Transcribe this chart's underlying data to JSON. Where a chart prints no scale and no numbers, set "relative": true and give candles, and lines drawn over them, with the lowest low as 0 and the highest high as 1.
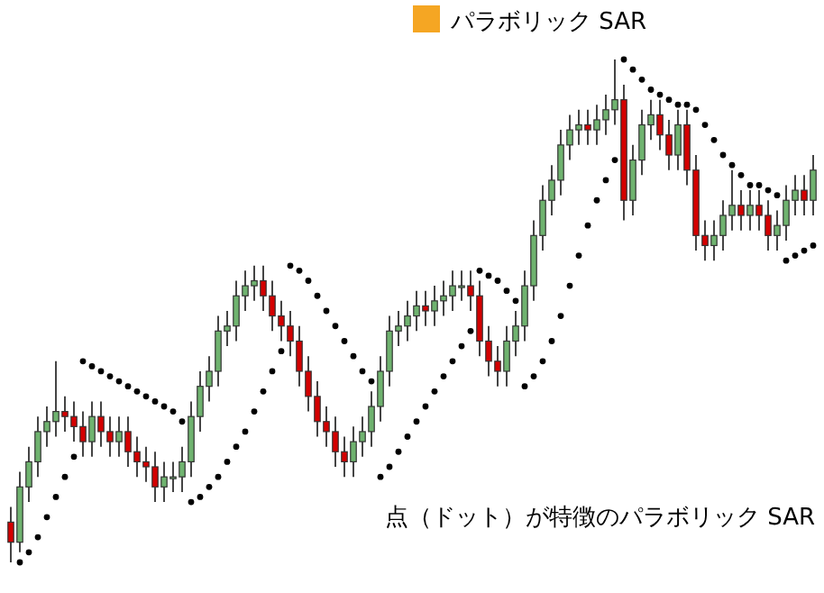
{
  "chart_data": {
    "type": "candlestick",
    "relative": true,
    "title": "パラボリック SAR",
    "annotations": [
      "点（ドット）が特徴のパラボリック SAR"
    ],
    "categories": [
      null,
      null,
      null,
      null,
      null,
      null,
      null,
      null,
      null,
      null,
      null,
      null,
      null,
      null,
      null,
      null,
      null,
      null,
      null,
      null,
      null,
      null,
      null,
      null,
      null,
      null,
      null,
      null,
      null,
      null,
      null,
      null,
      null,
      null,
      null,
      null,
      null,
      null,
      null,
      null,
      null,
      null,
      null,
      null,
      null,
      null,
      null,
      null,
      null,
      null,
      null,
      null,
      null,
      null,
      null,
      null,
      null,
      null,
      null,
      null,
      null,
      null,
      null,
      null,
      null,
      null,
      null,
      null,
      null,
      null,
      null,
      null,
      null,
      null,
      null,
      null,
      null,
      null,
      null,
      null,
      null,
      null,
      null,
      null,
      null,
      null,
      null,
      null,
      null,
      null
    ],
    "ohlc": [
      [
        0.08,
        0.11,
        0.0,
        0.04
      ],
      [
        0.04,
        0.18,
        0.02,
        0.15
      ],
      [
        0.15,
        0.23,
        0.12,
        0.2
      ],
      [
        0.2,
        0.29,
        0.17,
        0.26
      ],
      [
        0.26,
        0.31,
        0.23,
        0.28
      ],
      [
        0.28,
        0.4,
        0.25,
        0.3
      ],
      [
        0.3,
        0.33,
        0.26,
        0.29
      ],
      [
        0.29,
        0.32,
        0.24,
        0.27
      ],
      [
        0.27,
        0.3,
        0.21,
        0.24
      ],
      [
        0.24,
        0.32,
        0.21,
        0.29
      ],
      [
        0.29,
        0.32,
        0.23,
        0.26
      ],
      [
        0.26,
        0.29,
        0.21,
        0.24
      ],
      [
        0.24,
        0.29,
        0.21,
        0.26
      ],
      [
        0.26,
        0.29,
        0.19,
        0.22
      ],
      [
        0.22,
        0.25,
        0.17,
        0.2
      ],
      [
        0.2,
        0.23,
        0.16,
        0.19
      ],
      [
        0.19,
        0.22,
        0.12,
        0.15
      ],
      [
        0.15,
        0.2,
        0.12,
        0.17
      ],
      [
        0.17,
        0.2,
        0.14,
        0.17
      ],
      [
        0.17,
        0.23,
        0.14,
        0.2
      ],
      [
        0.2,
        0.32,
        0.17,
        0.29
      ],
      [
        0.29,
        0.38,
        0.26,
        0.35
      ],
      [
        0.35,
        0.41,
        0.32,
        0.38
      ],
      [
        0.38,
        0.49,
        0.35,
        0.46
      ],
      [
        0.46,
        0.5,
        0.43,
        0.47
      ],
      [
        0.47,
        0.56,
        0.44,
        0.53
      ],
      [
        0.53,
        0.58,
        0.5,
        0.55
      ],
      [
        0.55,
        0.59,
        0.52,
        0.56
      ],
      [
        0.56,
        0.59,
        0.5,
        0.53
      ],
      [
        0.53,
        0.56,
        0.46,
        0.49
      ],
      [
        0.49,
        0.52,
        0.44,
        0.47
      ],
      [
        0.47,
        0.5,
        0.41,
        0.44
      ],
      [
        0.44,
        0.47,
        0.35,
        0.38
      ],
      [
        0.38,
        0.41,
        0.3,
        0.33
      ],
      [
        0.33,
        0.36,
        0.25,
        0.28
      ],
      [
        0.28,
        0.31,
        0.23,
        0.26
      ],
      [
        0.26,
        0.29,
        0.19,
        0.22
      ],
      [
        0.22,
        0.25,
        0.17,
        0.2
      ],
      [
        0.2,
        0.27,
        0.17,
        0.24
      ],
      [
        0.24,
        0.29,
        0.21,
        0.26
      ],
      [
        0.26,
        0.34,
        0.23,
        0.31
      ],
      [
        0.31,
        0.41,
        0.28,
        0.38
      ],
      [
        0.38,
        0.49,
        0.35,
        0.46
      ],
      [
        0.46,
        0.5,
        0.43,
        0.47
      ],
      [
        0.47,
        0.52,
        0.44,
        0.49
      ],
      [
        0.49,
        0.54,
        0.46,
        0.51
      ],
      [
        0.51,
        0.54,
        0.47,
        0.5
      ],
      [
        0.5,
        0.55,
        0.47,
        0.52
      ],
      [
        0.52,
        0.56,
        0.49,
        0.53
      ],
      [
        0.53,
        0.58,
        0.5,
        0.55
      ],
      [
        0.55,
        0.58,
        0.52,
        0.55
      ],
      [
        0.55,
        0.58,
        0.5,
        0.53
      ],
      [
        0.53,
        0.56,
        0.41,
        0.44
      ],
      [
        0.44,
        0.47,
        0.37,
        0.4
      ],
      [
        0.4,
        0.43,
        0.35,
        0.38
      ],
      [
        0.38,
        0.47,
        0.35,
        0.44
      ],
      [
        0.44,
        0.5,
        0.41,
        0.47
      ],
      [
        0.47,
        0.58,
        0.44,
        0.55
      ],
      [
        0.55,
        0.68,
        0.52,
        0.65
      ],
      [
        0.65,
        0.75,
        0.62,
        0.72
      ],
      [
        0.72,
        0.79,
        0.69,
        0.76
      ],
      [
        0.76,
        0.86,
        0.73,
        0.83
      ],
      [
        0.83,
        0.89,
        0.8,
        0.86
      ],
      [
        0.86,
        0.9,
        0.83,
        0.87
      ],
      [
        0.87,
        0.9,
        0.83,
        0.86
      ],
      [
        0.86,
        0.91,
        0.83,
        0.88
      ],
      [
        0.88,
        0.93,
        0.85,
        0.9
      ],
      [
        0.9,
        1.0,
        0.87,
        0.92
      ],
      [
        0.92,
        0.95,
        0.68,
        0.72
      ],
      [
        0.72,
        0.83,
        0.69,
        0.8
      ],
      [
        0.8,
        0.9,
        0.77,
        0.87
      ],
      [
        0.87,
        0.92,
        0.84,
        0.89
      ],
      [
        0.89,
        0.92,
        0.82,
        0.85
      ],
      [
        0.85,
        0.88,
        0.78,
        0.81
      ],
      [
        0.81,
        0.9,
        0.78,
        0.87
      ],
      [
        0.87,
        0.9,
        0.75,
        0.78
      ],
      [
        0.78,
        0.81,
        0.62,
        0.65
      ],
      [
        0.65,
        0.68,
        0.6,
        0.63
      ],
      [
        0.63,
        0.68,
        0.6,
        0.65
      ],
      [
        0.65,
        0.72,
        0.62,
        0.69
      ],
      [
        0.69,
        0.78,
        0.66,
        0.71
      ],
      [
        0.71,
        0.74,
        0.66,
        0.69
      ],
      [
        0.69,
        0.74,
        0.66,
        0.71
      ],
      [
        0.71,
        0.74,
        0.66,
        0.69
      ],
      [
        0.69,
        0.72,
        0.62,
        0.65
      ],
      [
        0.65,
        0.7,
        0.62,
        0.67
      ],
      [
        0.67,
        0.75,
        0.64,
        0.72
      ],
      [
        0.72,
        0.77,
        0.69,
        0.74
      ],
      [
        0.74,
        0.77,
        0.69,
        0.72
      ],
      [
        0.72,
        0.81,
        0.69,
        0.78
      ]
    ],
    "series": [
      {
        "type": "scatter",
        "marker": "circle",
        "color": "#000000",
        "values": [
          null,
          0.0,
          0.02,
          0.05,
          0.09,
          0.13,
          0.17,
          0.21,
          0.4,
          0.39,
          0.38,
          0.37,
          0.36,
          0.35,
          0.34,
          0.33,
          0.32,
          0.31,
          0.3,
          0.28,
          0.12,
          0.13,
          0.15,
          0.17,
          0.2,
          0.23,
          0.26,
          0.3,
          0.34,
          0.38,
          0.42,
          0.59,
          0.58,
          0.56,
          0.53,
          0.5,
          0.47,
          0.44,
          0.41,
          0.38,
          0.36,
          0.17,
          0.19,
          0.22,
          0.25,
          0.28,
          0.31,
          0.34,
          0.37,
          0.4,
          0.43,
          0.46,
          0.58,
          0.57,
          0.56,
          0.54,
          0.52,
          0.35,
          0.37,
          0.4,
          0.44,
          0.49,
          0.55,
          0.61,
          0.67,
          0.72,
          0.76,
          0.8,
          1.0,
          0.98,
          0.96,
          0.94,
          0.93,
          0.92,
          0.91,
          0.91,
          0.9,
          0.87,
          0.84,
          0.81,
          0.79,
          0.77,
          0.75,
          0.75,
          0.74,
          0.73,
          0.6,
          0.61,
          0.62,
          0.63
        ]
      }
    ]
  }
}
